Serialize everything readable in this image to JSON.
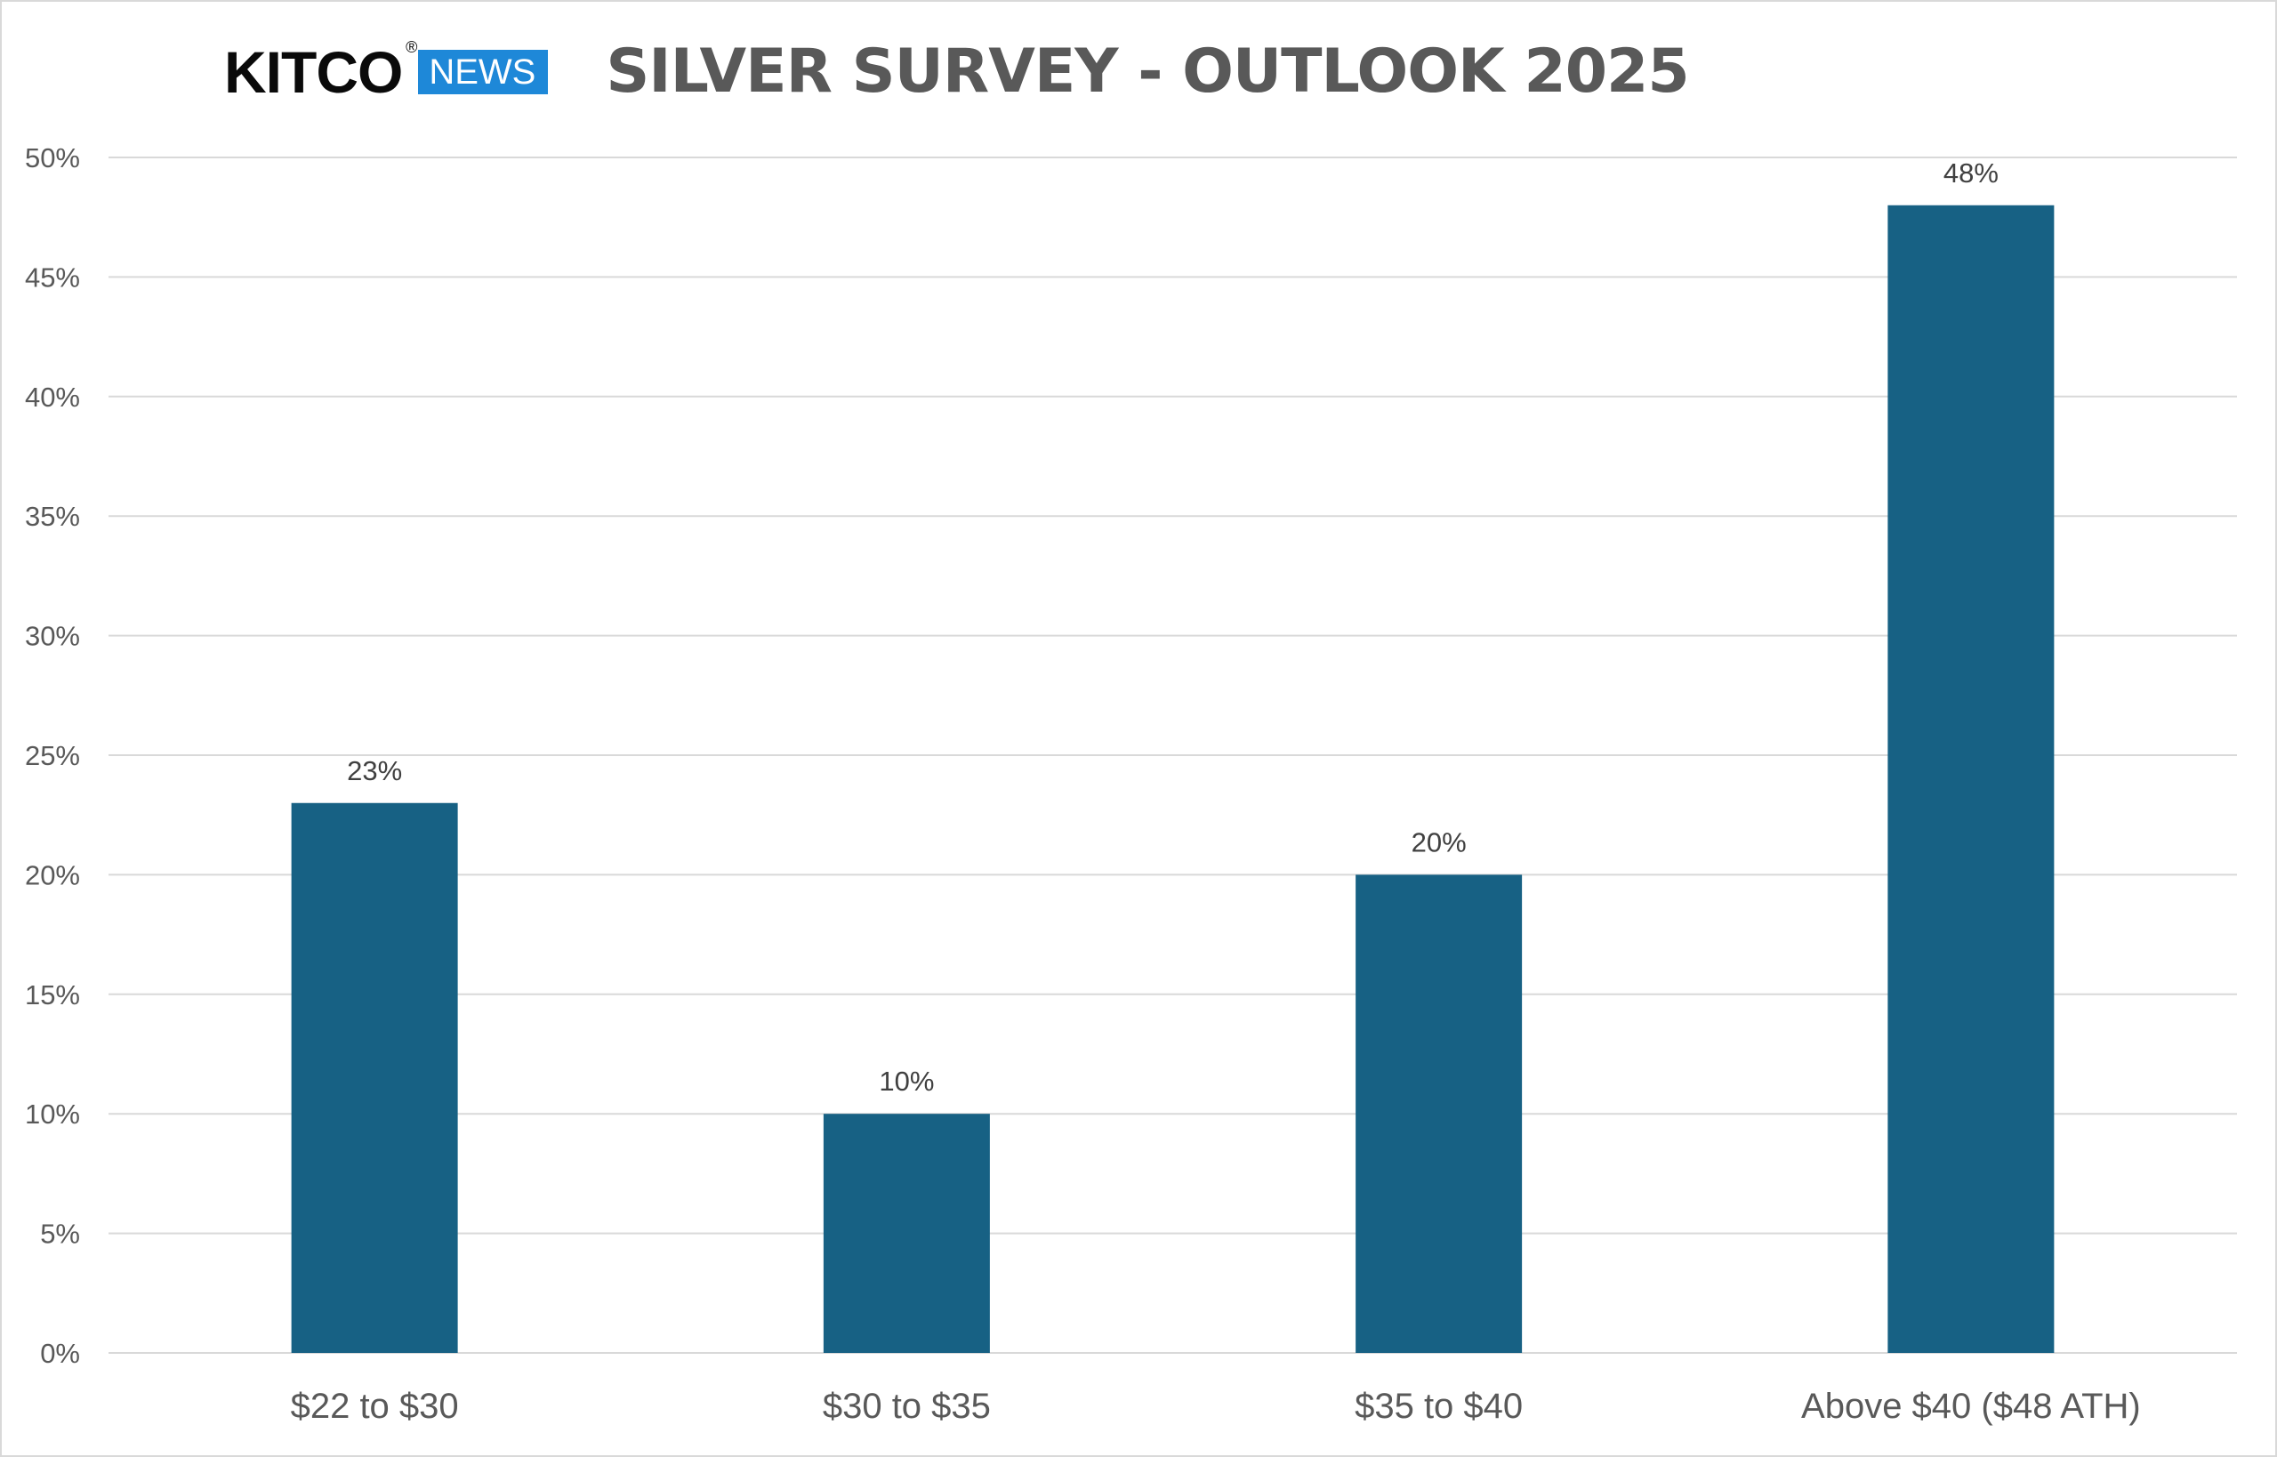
{
  "logo": {
    "brand": "KITCO",
    "registered": "®",
    "badge": "NEWS"
  },
  "colors": {
    "bar": "#176184",
    "gridline": "#d9d9d9",
    "axis_text": "#595959",
    "title": "#595959",
    "logo_badge": "#1e88d8"
  },
  "chart_data": {
    "type": "bar",
    "title": "SILVER SURVEY - OUTLOOK 2025",
    "xlabel": "",
    "ylabel": "",
    "categories": [
      "$22 to $30",
      "$30 to $35",
      "$35 to $40",
      "Above $40 ($48 ATH)"
    ],
    "values": [
      23,
      10,
      20,
      48
    ],
    "data_labels": [
      "23%",
      "10%",
      "20%",
      "48%"
    ],
    "ylim": [
      0,
      50
    ],
    "y_ticks": [
      0,
      5,
      10,
      15,
      20,
      25,
      30,
      35,
      40,
      45,
      50
    ],
    "y_tick_labels": [
      "0%",
      "5%",
      "10%",
      "15%",
      "20%",
      "25%",
      "30%",
      "35%",
      "40%",
      "45%",
      "50%"
    ],
    "grid": true,
    "legend": "none"
  }
}
